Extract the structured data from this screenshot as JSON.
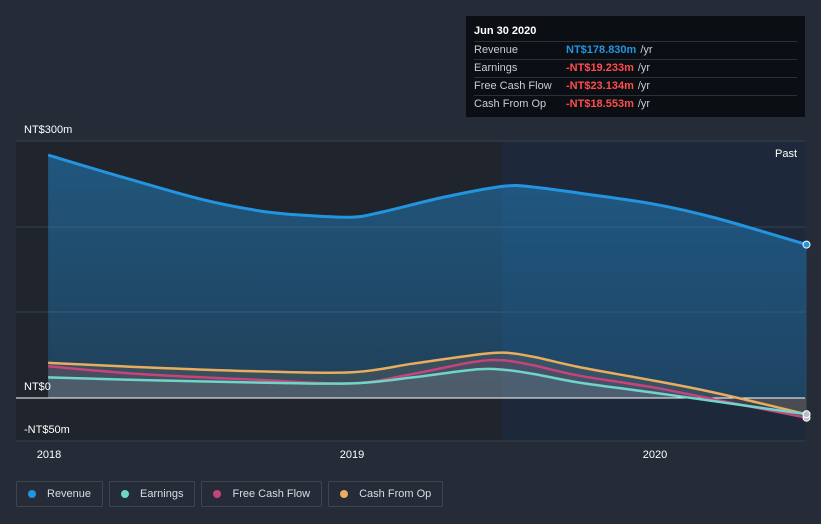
{
  "tooltip": {
    "date": "Jun 30 2020",
    "rows": [
      {
        "label": "Revenue",
        "value": "NT$178.830m",
        "unit": "/yr",
        "color": "#2394df"
      },
      {
        "label": "Earnings",
        "value": "-NT$19.233m",
        "unit": "/yr",
        "color": "#ff4d4d"
      },
      {
        "label": "Free Cash Flow",
        "value": "-NT$23.134m",
        "unit": "/yr",
        "color": "#ff4d4d"
      },
      {
        "label": "Cash From Op",
        "value": "-NT$18.553m",
        "unit": "/yr",
        "color": "#ff4d4d"
      }
    ]
  },
  "legend": [
    {
      "label": "Revenue",
      "color": "#2394df"
    },
    {
      "label": "Earnings",
      "color": "#6ed6c8"
    },
    {
      "label": "Free Cash Flow",
      "color": "#c4457b"
    },
    {
      "label": "Cash From Op",
      "color": "#e8ad5e"
    }
  ],
  "chart_data": {
    "type": "line",
    "x_ticks": [
      "2018",
      "2019",
      "2020"
    ],
    "y_labels": {
      "top": "NT$300m",
      "zero": "NT$0",
      "bottom": "-NT$50m"
    },
    "ylim": [
      -50,
      300
    ],
    "past_label": "Past",
    "colors": {
      "revenue": "#2394df",
      "earnings": "#6ed6c8",
      "fcf": "#c4457b",
      "cfo": "#e8ad5e"
    },
    "series": [
      {
        "name": "Revenue",
        "key": "revenue",
        "x": [
          2017.997,
          2018.2,
          2018.5,
          2018.7,
          2018.85,
          2019.0,
          2019.1,
          2019.3,
          2019.5,
          2019.6,
          2019.75,
          2020.0,
          2020.2,
          2020.5
        ],
        "values": [
          283.5,
          262,
          232,
          218,
          213,
          211,
          217,
          234,
          247,
          246,
          239,
          226,
          210,
          179
        ]
      },
      {
        "name": "Earnings",
        "key": "earnings",
        "x": [
          2017.997,
          2018.3,
          2018.7,
          2019.0,
          2019.2,
          2019.4,
          2019.5,
          2019.6,
          2019.75,
          2020.0,
          2020.2,
          2020.5
        ],
        "values": [
          24,
          21,
          18,
          17,
          24,
          33,
          33,
          28,
          18,
          6,
          -4,
          -19
        ]
      },
      {
        "name": "Free Cash Flow",
        "key": "fcf",
        "x": [
          2017.997,
          2018.3,
          2018.7,
          2019.0,
          2019.2,
          2019.4,
          2019.5,
          2019.6,
          2019.75,
          2020.0,
          2020.2,
          2020.5
        ],
        "values": [
          37,
          28,
          21,
          17,
          28,
          42,
          44,
          38,
          26,
          12,
          -2,
          -23
        ]
      },
      {
        "name": "Cash From Op",
        "key": "cfo",
        "x": [
          2017.997,
          2018.3,
          2018.7,
          2019.0,
          2019.2,
          2019.4,
          2019.5,
          2019.6,
          2019.75,
          2020.0,
          2020.2,
          2020.5
        ],
        "values": [
          41,
          36,
          31,
          30,
          40,
          50,
          53,
          48,
          36,
          20,
          6,
          -19
        ]
      }
    ]
  }
}
